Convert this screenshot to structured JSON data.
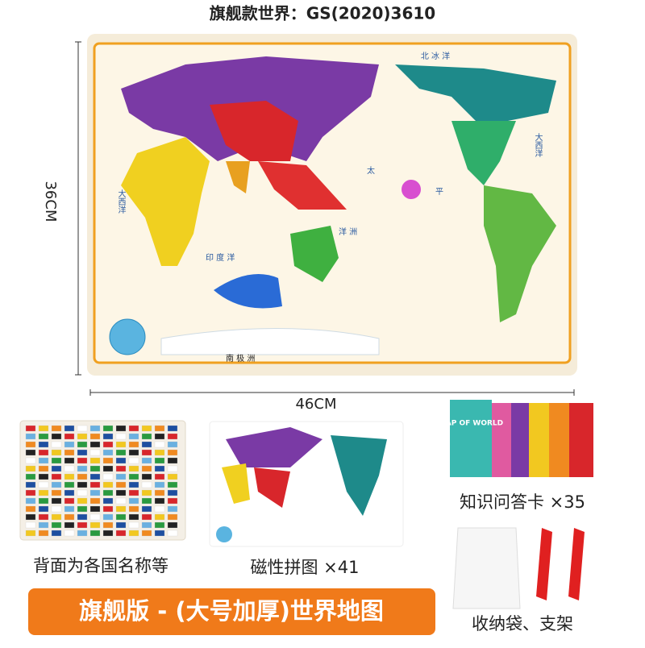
{
  "header": {
    "title": "旗舰款世界：GS(2020)3610"
  },
  "dimensions": {
    "height": "36CM",
    "width": "46CM"
  },
  "map": {
    "labels": [
      "北 冰 洋",
      "大西洋",
      "大西洋",
      "太",
      "平",
      "洋 洲",
      "印 度 洋",
      "南 极 洲"
    ]
  },
  "cards": {
    "title": "MAP OF WORLD"
  },
  "items": [
    {
      "label": "背面为各国名称等"
    },
    {
      "label": "磁性拼图 ×41"
    },
    {
      "label": "知识问答卡 ×35"
    },
    {
      "label": "收纳袋、支架"
    }
  ],
  "banner": {
    "text": "旗舰版 - (大号加厚)世界地图"
  }
}
